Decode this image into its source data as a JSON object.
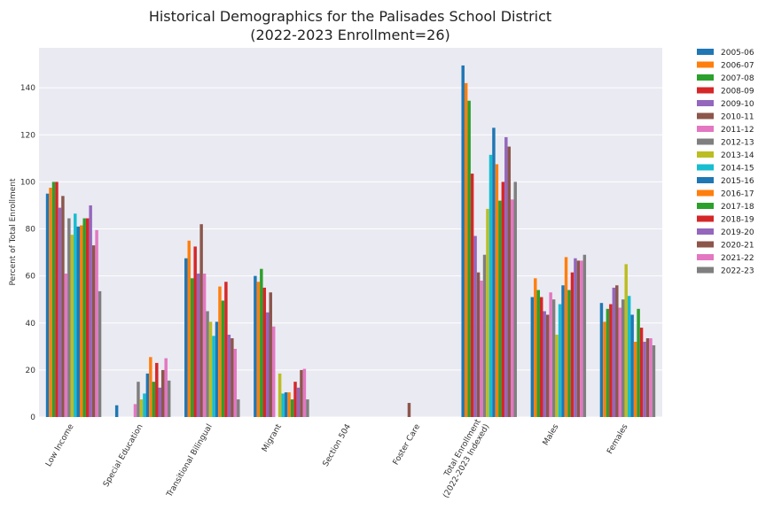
{
  "chart_data": {
    "type": "bar",
    "title_line1": "Historical Demographics for the Palisades School District",
    "title_line2": "(2022-2023 Enrollment=26)",
    "xlabel": "",
    "ylabel": "Percent of Total Enrollment",
    "ylim": [
      0,
      157
    ],
    "yticks": [
      0,
      20,
      40,
      60,
      80,
      100,
      120,
      140
    ],
    "grid": true,
    "legend_position": "outside-right",
    "categories": [
      [
        "Low Income"
      ],
      [
        "Special Education"
      ],
      [
        "Transitional Bilingual"
      ],
      [
        "Migrant"
      ],
      [
        "Section 504"
      ],
      [
        "Foster Care"
      ],
      [
        "Total Enrollment",
        "(2022-2023 Indexed)"
      ],
      [
        "Males"
      ],
      [
        "Females"
      ]
    ],
    "series": [
      {
        "name": "2005-06",
        "color": "#1f77b4",
        "values": [
          95,
          5,
          67.5,
          60,
          0,
          0,
          149.5,
          51,
          48.5
        ]
      },
      {
        "name": "2006-07",
        "color": "#ff7f0e",
        "values": [
          97.5,
          0,
          75,
          57.5,
          0,
          0,
          142,
          59,
          40.5
        ]
      },
      {
        "name": "2007-08",
        "color": "#2ca02c",
        "values": [
          100,
          0,
          59,
          63,
          0,
          0,
          134.5,
          54,
          46
        ]
      },
      {
        "name": "2008-09",
        "color": "#d62728",
        "values": [
          100,
          0,
          72.5,
          55,
          0,
          0,
          103.5,
          51,
          48
        ]
      },
      {
        "name": "2009-10",
        "color": "#9467bd",
        "values": [
          89,
          0,
          61,
          44.5,
          0,
          0,
          77,
          45,
          55
        ]
      },
      {
        "name": "2010-11",
        "color": "#8c564b",
        "values": [
          94,
          0,
          82,
          53,
          0,
          6,
          61.5,
          43.5,
          56
        ]
      },
      {
        "name": "2011-12",
        "color": "#e377c2",
        "values": [
          61,
          5.5,
          61,
          38.5,
          0,
          0,
          58,
          53,
          46.5
        ]
      },
      {
        "name": "2012-13",
        "color": "#7f7f7f",
        "values": [
          84.5,
          15,
          45,
          0,
          0,
          0,
          69,
          50,
          50
        ]
      },
      {
        "name": "2013-14",
        "color": "#bcbd22",
        "values": [
          77.5,
          7.5,
          40.5,
          18.5,
          0,
          0,
          88.5,
          35,
          65
        ]
      },
      {
        "name": "2014-15",
        "color": "#17becf",
        "values": [
          86.5,
          10,
          34.5,
          10,
          0,
          0,
          111.5,
          48,
          51.5
        ]
      },
      {
        "name": "2015-16",
        "color": "#1f77b4",
        "values": [
          81,
          18.5,
          40.5,
          10.5,
          0,
          0,
          123,
          56,
          43.5
        ]
      },
      {
        "name": "2016-17",
        "color": "#ff7f0e",
        "values": [
          81.5,
          25.5,
          55.5,
          10.5,
          0,
          0,
          107.5,
          68,
          32
        ]
      },
      {
        "name": "2017-18",
        "color": "#2ca02c",
        "values": [
          84.5,
          15,
          49.5,
          7.5,
          0,
          0,
          92,
          54,
          46
        ]
      },
      {
        "name": "2018-19",
        "color": "#d62728",
        "values": [
          84.5,
          23,
          57.5,
          15,
          0,
          0,
          100,
          61.5,
          38
        ]
      },
      {
        "name": "2019-20",
        "color": "#9467bd",
        "values": [
          90,
          12.5,
          35,
          12.5,
          0,
          0,
          119,
          67.5,
          32
        ]
      },
      {
        "name": "2020-21",
        "color": "#8c564b",
        "values": [
          73,
          20,
          33.5,
          20,
          0,
          0,
          115,
          66.5,
          33.5
        ]
      },
      {
        "name": "2021-22",
        "color": "#e377c2",
        "values": [
          79.5,
          25,
          29,
          20.5,
          0,
          0,
          92.5,
          66.5,
          33.5
        ]
      },
      {
        "name": "2022-23",
        "color": "#7f7f7f",
        "values": [
          53.5,
          15.5,
          7.5,
          7.5,
          0,
          0,
          100,
          69,
          30.5
        ]
      }
    ]
  }
}
